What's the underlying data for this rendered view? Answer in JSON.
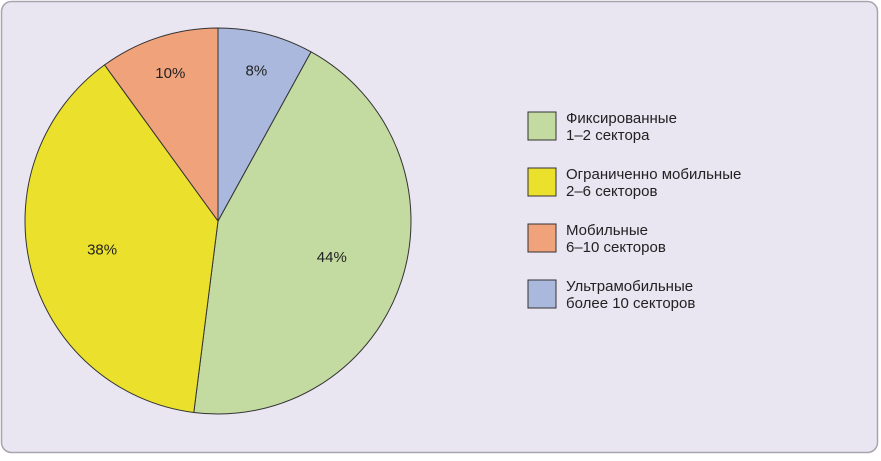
{
  "chart_data": {
    "type": "pie",
    "categories": [
      [
        "Фиксированные",
        "1–2 сектора"
      ],
      [
        "Ограниченно мобильные",
        "2–6 секторов"
      ],
      [
        "Мобильные",
        "6–10 секторов"
      ],
      [
        "Ультрамобильные",
        "более 10 секторов"
      ]
    ],
    "values": [
      44,
      38,
      10,
      8
    ],
    "value_labels": [
      "44%",
      "38%",
      "10%",
      "8%"
    ],
    "colors": [
      "#c3dba0",
      "#ebe12c",
      "#f0a37b",
      "#aab8dd"
    ],
    "legend": "right"
  }
}
